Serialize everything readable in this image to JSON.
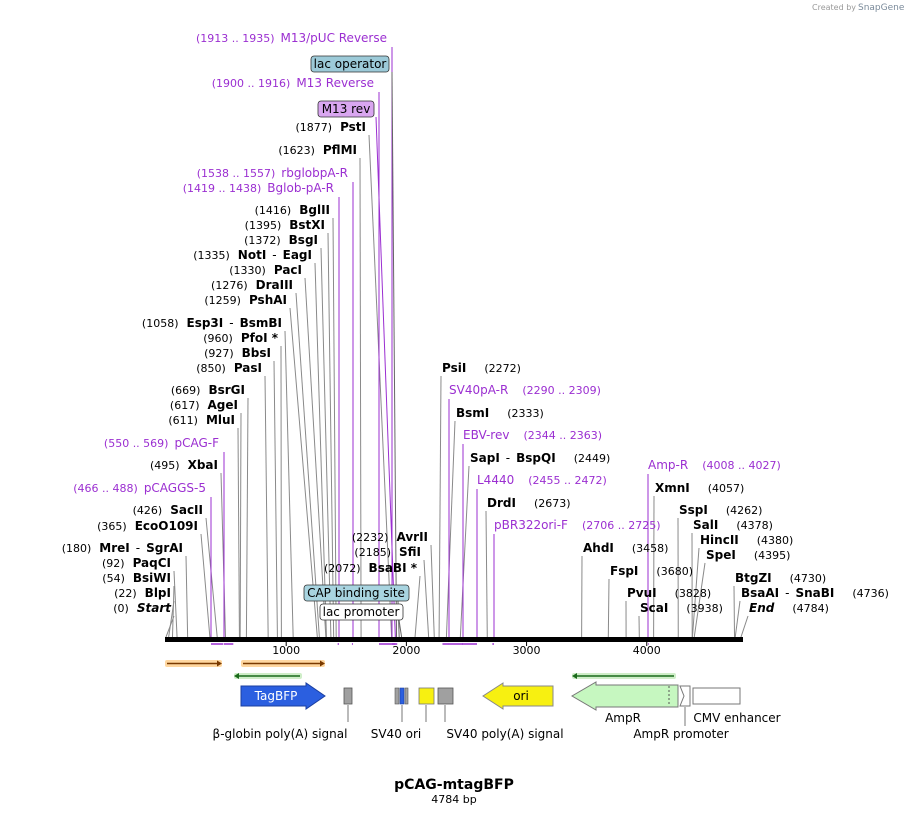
{
  "header": {
    "credit_prefix": "Created by",
    "credit_brand": "SnapGene"
  },
  "plasmid": {
    "name": "pCAG-mtagBFP",
    "length_label": "4784 bp",
    "length": 4784
  },
  "colors": {
    "primer": "#9b2fd1",
    "enzyme_line": "#8a8a8a",
    "backbone": "#000000",
    "lac_operator": "#9ccad8",
    "m13_rev": "#d9a6f0",
    "cap_site": "#a8d4e0",
    "tagbfp": "#2b5fe0",
    "ori": "#f7f011",
    "ampr": "#c6f7c0",
    "sv40pa": "#a0a0a0",
    "sv40ori": "#f7f011"
  },
  "enzymes": [
    {
      "name": "Start",
      "pos": "(0)",
      "bp": 0,
      "italic": true
    },
    {
      "name": "BlpI",
      "pos": "(22)",
      "bp": 22
    },
    {
      "name": "BsiWI",
      "pos": "(54)",
      "bp": 54
    },
    {
      "name": "PaqCI",
      "pos": "(92)",
      "bp": 92
    },
    {
      "name": "MreI",
      "name2": "SgrAI",
      "pos": "(180)",
      "bp": 180
    },
    {
      "name": "EcoO109I",
      "pos": "(365)",
      "bp": 365
    },
    {
      "name": "SacII",
      "pos": "(426)",
      "bp": 426
    },
    {
      "name": "XbaI",
      "pos": "(495)",
      "bp": 495
    },
    {
      "name": "MluI",
      "pos": "(611)",
      "bp": 611
    },
    {
      "name": "AgeI",
      "pos": "(617)",
      "bp": 617
    },
    {
      "name": "BsrGI",
      "pos": "(669)",
      "bp": 669
    },
    {
      "name": "PasI",
      "pos": "(850)",
      "bp": 850
    },
    {
      "name": "BbsI",
      "pos": "(927)",
      "bp": 927
    },
    {
      "name": "PfoI *",
      "pos": "(960)",
      "bp": 960
    },
    {
      "name": "Esp3I",
      "name2": "BsmBI",
      "pos": "(1058)",
      "bp": 1058
    },
    {
      "name": "PshAI",
      "pos": "(1259)",
      "bp": 1259
    },
    {
      "name": "DraIII",
      "pos": "(1276)",
      "bp": 1276
    },
    {
      "name": "PacI",
      "pos": "(1330)",
      "bp": 1330
    },
    {
      "name": "NotI",
      "name2": "EagI",
      "pos": "(1335)",
      "bp": 1335
    },
    {
      "name": "BsgI",
      "pos": "(1372)",
      "bp": 1372
    },
    {
      "name": "BstXI",
      "pos": "(1395)",
      "bp": 1395
    },
    {
      "name": "BglII",
      "pos": "(1416)",
      "bp": 1416
    },
    {
      "name": "PflMI",
      "pos": "(1623)",
      "bp": 1623
    },
    {
      "name": "PstI",
      "pos": "(1877)",
      "bp": 1877
    },
    {
      "name": "BsaBI *",
      "pos": "(2072)",
      "bp": 2072
    },
    {
      "name": "SfiI",
      "pos": "(2185)",
      "bp": 2185
    },
    {
      "name": "AvrII",
      "pos": "(2232)",
      "bp": 2232
    },
    {
      "name": "PsiI",
      "pos": "(2272)",
      "bp": 2272
    },
    {
      "name": "BsmI",
      "pos": "(2333)",
      "bp": 2333
    },
    {
      "name": "SapI",
      "name2": "BspQI",
      "pos": "(2449)",
      "bp": 2449
    },
    {
      "name": "DrdI",
      "pos": "(2673)",
      "bp": 2673
    },
    {
      "name": "AhdI",
      "pos": "(3458)",
      "bp": 3458
    },
    {
      "name": "FspI",
      "pos": "(3680)",
      "bp": 3680
    },
    {
      "name": "PvuI",
      "pos": "(3828)",
      "bp": 3828
    },
    {
      "name": "ScaI",
      "pos": "(3938)",
      "bp": 3938
    },
    {
      "name": "XmnI",
      "pos": "(4057)",
      "bp": 4057
    },
    {
      "name": "SspI",
      "pos": "(4262)",
      "bp": 4262
    },
    {
      "name": "SalI",
      "pos": "(4378)",
      "bp": 4378
    },
    {
      "name": "HincII",
      "pos": "(4380)",
      "bp": 4380
    },
    {
      "name": "SpeI",
      "pos": "(4395)",
      "bp": 4395
    },
    {
      "name": "BtgZI",
      "pos": "(4730)",
      "bp": 4730
    },
    {
      "name": "BsaAI",
      "name2": "SnaBI",
      "pos": "(4736)",
      "bp": 4736
    },
    {
      "name": "End",
      "pos": "(4784)",
      "bp": 4784,
      "italic": true
    }
  ],
  "primers": [
    {
      "name": "M13/pUC Reverse",
      "range": "(1913 .. 1935)",
      "bp": 1924
    },
    {
      "name": "M13 Reverse",
      "range": "(1900 .. 1916)",
      "bp": 1908
    },
    {
      "name": "rbglobpA-R",
      "range": "(1538 .. 1557)",
      "bp": 1547
    },
    {
      "name": "Bglob-pA-R",
      "range": "(1419 .. 1438)",
      "bp": 1428
    },
    {
      "name": "pCAG-F",
      "range": "(550 .. 569)",
      "bp": 560
    },
    {
      "name": "pCAGGS-5",
      "range": "(466 .. 488)",
      "bp": 477
    },
    {
      "name": "SV40pA-R",
      "range": "(2290 .. 2309)",
      "bp": 2300
    },
    {
      "name": "EBV-rev",
      "range": "(2344 .. 2363)",
      "bp": 2353
    },
    {
      "name": "L4440",
      "range": "(2455 .. 2472)",
      "bp": 2463
    },
    {
      "name": "pBR322ori-F",
      "range": "(2706 .. 2725)",
      "bp": 2715
    },
    {
      "name": "Amp-R",
      "range": "(4008 .. 4027)",
      "bp": 4017
    }
  ],
  "boxed_features": [
    {
      "name": "lac operator",
      "bp": 1918
    },
    {
      "name": "M13 rev",
      "bp": 1908
    },
    {
      "name": "CAP binding site",
      "bp": 1940
    },
    {
      "name": "lac promoter",
      "bp": 1960
    }
  ],
  "ruler": {
    "ticks": [
      "1000",
      "2000",
      "3000",
      "4000"
    ],
    "tick_bp": [
      1000,
      2000,
      3000,
      4000
    ]
  },
  "features": [
    {
      "name": "TagBFP",
      "type": "arrow-right",
      "bp_start": 620,
      "bp_end": 1330
    },
    {
      "name": "ori",
      "type": "arrow-left",
      "bp_start": 2620,
      "bp_end": 3210
    },
    {
      "name": "AmpR",
      "type": "arrow-left",
      "bp_start": 3380,
      "bp_end": 4240
    }
  ],
  "feature_labels": {
    "bglobin": "β-globin poly(A) signal",
    "sv40ori": "SV40 ori",
    "sv40pa": "SV40 poly(A) signal",
    "ampr": "AmpR",
    "ampr_promoter": "AmpR promoter",
    "cmv": "CMV enhancer"
  }
}
